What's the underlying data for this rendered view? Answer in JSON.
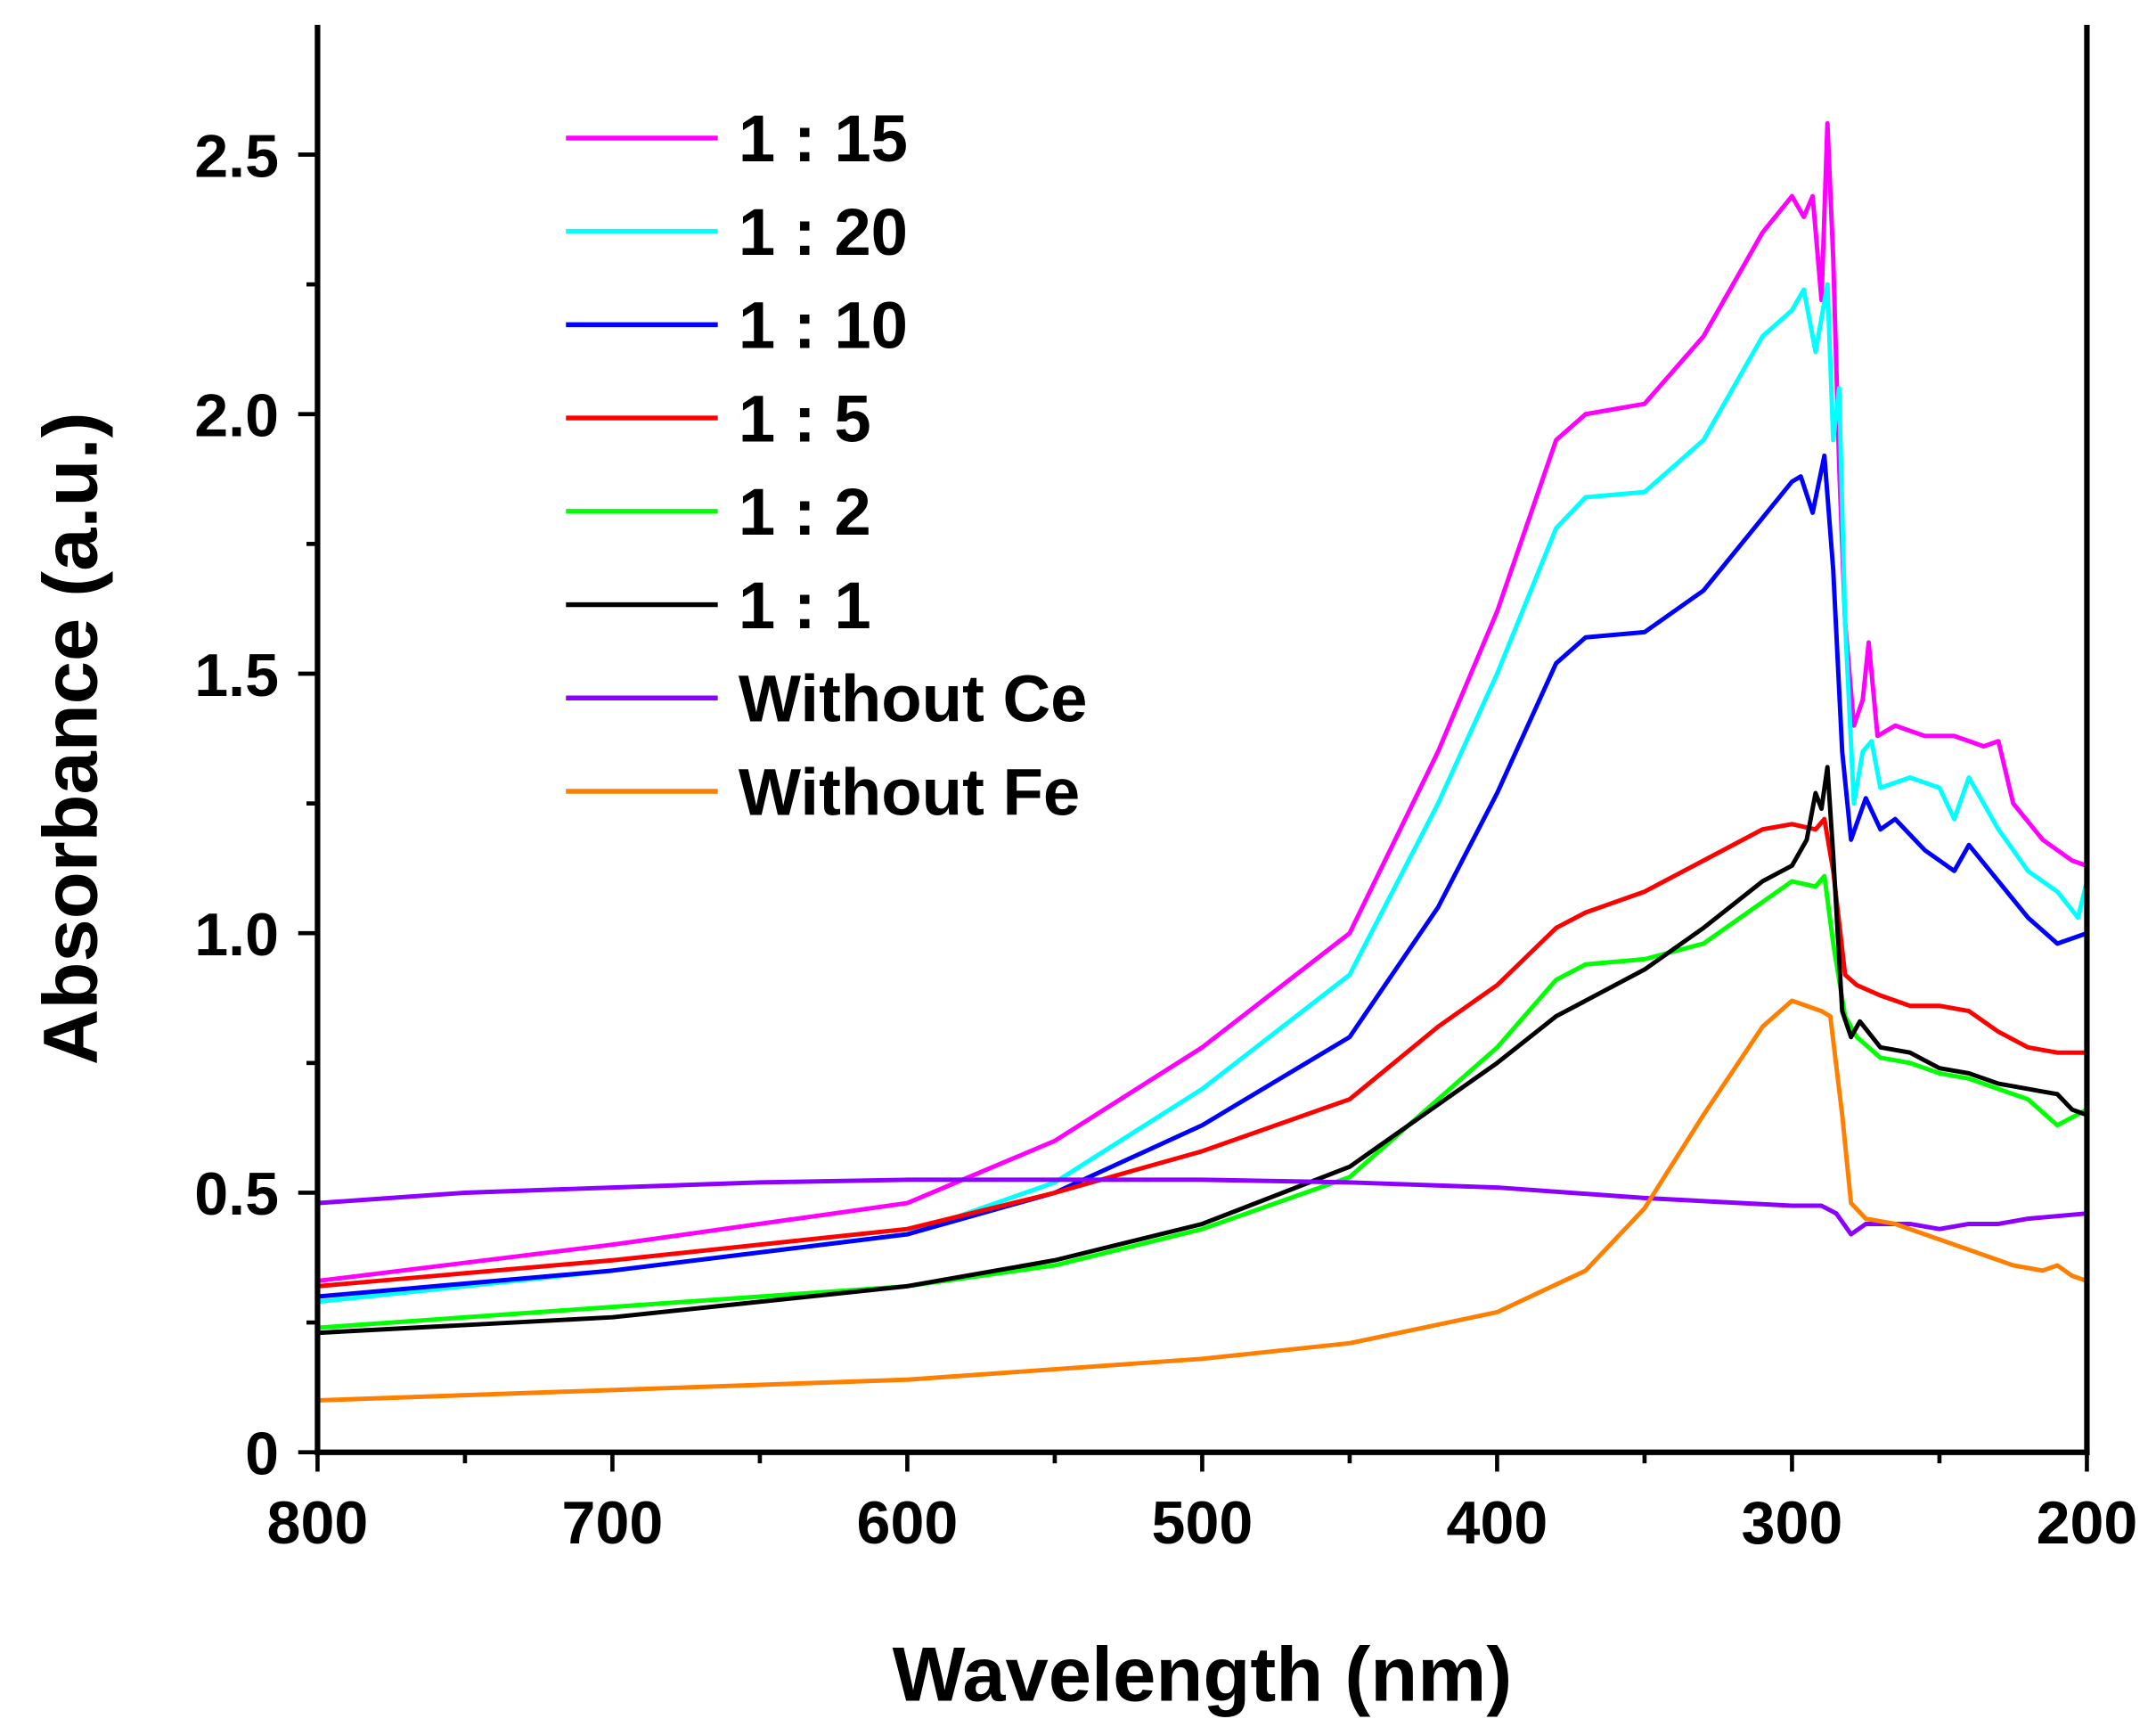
{
  "chart_data": {
    "type": "line",
    "title": "",
    "xlabel": "Wavelength (nm)",
    "ylabel": "Absorbance (a.u.)",
    "xlim": [
      800,
      200
    ],
    "ylim": [
      0,
      2.75
    ],
    "xticks": [
      "800",
      "700",
      "600",
      "500",
      "400",
      "300",
      "200"
    ],
    "xtick_values": [
      800,
      700,
      600,
      500,
      400,
      300,
      200
    ],
    "yticks": [
      "0",
      "0.5",
      "1.0",
      "1.5",
      "2.0",
      "2.5"
    ],
    "ytick_values": [
      0,
      0.5,
      1.0,
      1.5,
      2.0,
      2.5
    ],
    "grid": false,
    "legend_position": "top-left",
    "series": [
      {
        "name": "1 : 15",
        "color": "#ff00ff",
        "x": [
          800,
          700,
          600,
          550,
          500,
          450,
          420,
          400,
          380,
          370,
          350,
          330,
          310,
          300,
          296,
          293,
          290,
          288,
          286,
          284,
          282,
          279,
          276,
          274,
          271,
          265,
          255,
          245,
          235,
          230,
          225,
          215,
          205,
          200
        ],
        "y": [
          0.33,
          0.4,
          0.48,
          0.6,
          0.78,
          1.0,
          1.35,
          1.62,
          1.95,
          2.0,
          2.02,
          2.15,
          2.35,
          2.42,
          2.38,
          2.42,
          2.22,
          2.56,
          2.3,
          1.9,
          1.6,
          1.4,
          1.45,
          1.56,
          1.38,
          1.4,
          1.38,
          1.38,
          1.36,
          1.37,
          1.25,
          1.18,
          1.14,
          1.13
        ]
      },
      {
        "name": "1 : 20",
        "color": "#00ffff",
        "x": [
          800,
          700,
          600,
          550,
          500,
          450,
          420,
          400,
          380,
          370,
          350,
          330,
          310,
          300,
          296,
          292,
          288,
          286,
          284,
          282,
          279,
          276,
          273,
          270,
          260,
          250,
          245,
          240,
          230,
          220,
          210,
          203,
          200
        ],
        "y": [
          0.29,
          0.35,
          0.42,
          0.52,
          0.7,
          0.92,
          1.25,
          1.5,
          1.78,
          1.84,
          1.85,
          1.95,
          2.15,
          2.2,
          2.24,
          2.12,
          2.25,
          1.95,
          2.05,
          1.6,
          1.25,
          1.35,
          1.37,
          1.28,
          1.3,
          1.28,
          1.22,
          1.3,
          1.2,
          1.12,
          1.08,
          1.03,
          1.1
        ]
      },
      {
        "name": "1 : 10",
        "color": "#0000ff",
        "x": [
          800,
          700,
          600,
          550,
          500,
          450,
          420,
          400,
          380,
          370,
          350,
          330,
          310,
          300,
          297,
          293,
          289,
          286,
          283,
          280,
          275,
          270,
          265,
          255,
          245,
          240,
          230,
          220,
          210,
          200
        ],
        "y": [
          0.3,
          0.35,
          0.42,
          0.5,
          0.63,
          0.8,
          1.05,
          1.27,
          1.52,
          1.57,
          1.58,
          1.66,
          1.8,
          1.87,
          1.88,
          1.81,
          1.92,
          1.7,
          1.35,
          1.18,
          1.26,
          1.2,
          1.22,
          1.16,
          1.12,
          1.17,
          1.1,
          1.03,
          0.98,
          1.0
        ]
      },
      {
        "name": "1 : 5",
        "color": "#ff0000",
        "x": [
          800,
          700,
          600,
          550,
          500,
          450,
          420,
          400,
          380,
          370,
          350,
          330,
          310,
          300,
          292,
          289,
          286,
          282,
          278,
          270,
          260,
          250,
          240,
          230,
          220,
          210,
          200
        ],
        "y": [
          0.32,
          0.37,
          0.43,
          0.5,
          0.58,
          0.68,
          0.82,
          0.9,
          1.01,
          1.04,
          1.08,
          1.14,
          1.2,
          1.21,
          1.2,
          1.22,
          1.12,
          0.92,
          0.9,
          0.88,
          0.86,
          0.86,
          0.85,
          0.81,
          0.78,
          0.77,
          0.77
        ]
      },
      {
        "name": "1 : 2",
        "color": "#00ff00",
        "x": [
          800,
          700,
          600,
          550,
          500,
          450,
          420,
          400,
          380,
          370,
          350,
          330,
          310,
          300,
          292,
          289,
          286,
          282,
          278,
          270,
          260,
          250,
          240,
          230,
          220,
          210,
          200
        ],
        "y": [
          0.24,
          0.28,
          0.32,
          0.36,
          0.43,
          0.53,
          0.68,
          0.78,
          0.91,
          0.94,
          0.95,
          0.98,
          1.06,
          1.1,
          1.09,
          1.11,
          0.98,
          0.84,
          0.8,
          0.76,
          0.75,
          0.73,
          0.72,
          0.7,
          0.68,
          0.63,
          0.66
        ]
      },
      {
        "name": "1 : 1",
        "color": "#000000",
        "x": [
          800,
          700,
          600,
          550,
          500,
          450,
          420,
          400,
          380,
          370,
          350,
          330,
          310,
          300,
          295,
          292,
          290,
          288,
          286,
          283,
          280,
          277,
          270,
          260,
          250,
          240,
          230,
          220,
          210,
          205,
          200
        ],
        "y": [
          0.23,
          0.26,
          0.32,
          0.37,
          0.44,
          0.55,
          0.67,
          0.75,
          0.84,
          0.87,
          0.93,
          1.01,
          1.1,
          1.13,
          1.18,
          1.27,
          1.24,
          1.32,
          1.15,
          0.85,
          0.8,
          0.83,
          0.78,
          0.77,
          0.74,
          0.73,
          0.71,
          0.7,
          0.69,
          0.66,
          0.65
        ]
      },
      {
        "name": "Without Ce",
        "color": "#8b00ff",
        "x": [
          800,
          750,
          700,
          650,
          600,
          550,
          500,
          450,
          400,
          350,
          300,
          290,
          285,
          280,
          275,
          260,
          250,
          240,
          230,
          220,
          200
        ],
        "y": [
          0.48,
          0.5,
          0.51,
          0.52,
          0.525,
          0.525,
          0.525,
          0.52,
          0.51,
          0.49,
          0.475,
          0.475,
          0.46,
          0.42,
          0.44,
          0.44,
          0.43,
          0.44,
          0.44,
          0.45,
          0.46
        ]
      },
      {
        "name": "Without Fe",
        "color": "#ff8000",
        "x": [
          800,
          700,
          600,
          500,
          450,
          400,
          370,
          350,
          330,
          310,
          300,
          290,
          287,
          283,
          280,
          275,
          265,
          255,
          245,
          235,
          225,
          215,
          210,
          205,
          200
        ],
        "y": [
          0.1,
          0.12,
          0.14,
          0.18,
          0.21,
          0.27,
          0.35,
          0.47,
          0.65,
          0.82,
          0.87,
          0.85,
          0.84,
          0.65,
          0.48,
          0.45,
          0.44,
          0.42,
          0.4,
          0.38,
          0.36,
          0.35,
          0.36,
          0.34,
          0.33
        ]
      }
    ]
  }
}
